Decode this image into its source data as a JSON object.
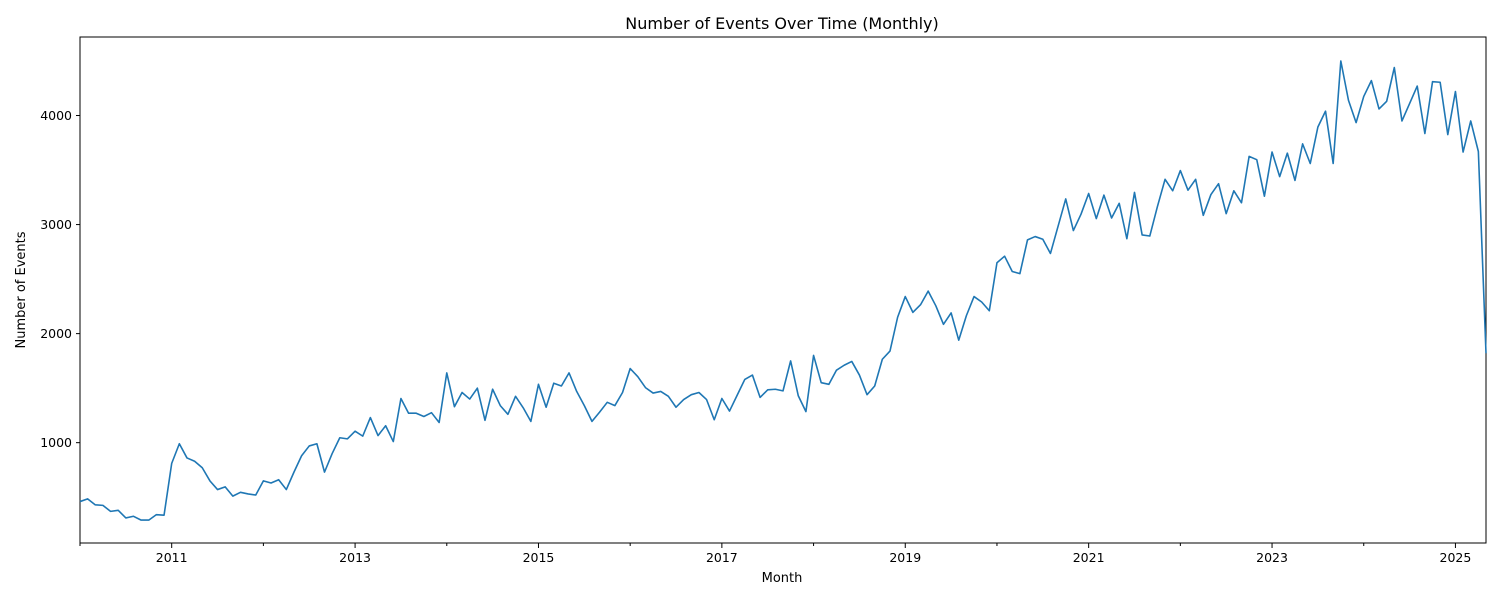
{
  "chart_data": {
    "type": "line",
    "title": "Number of Events Over Time (Monthly)",
    "xlabel": "Month",
    "ylabel": "Number of Events",
    "xlim": [
      "2010-01",
      "2025-06"
    ],
    "ylim": [
      80,
      4720
    ],
    "grid": false,
    "legend": "none",
    "line_color": "#1f77b4",
    "x_ticks": [
      "2011",
      "2013",
      "2015",
      "2017",
      "2019",
      "2021",
      "2023",
      "2025"
    ],
    "y_ticks": [
      "1000",
      "2000",
      "3000",
      "4000"
    ],
    "y_tick_values": [
      1000,
      2000,
      3000,
      4000
    ],
    "start": "2010-01",
    "values": [
      460,
      485,
      430,
      425,
      370,
      380,
      310,
      325,
      290,
      290,
      340,
      335,
      810,
      990,
      860,
      830,
      770,
      650,
      570,
      595,
      510,
      545,
      530,
      520,
      650,
      630,
      660,
      570,
      730,
      880,
      970,
      990,
      730,
      900,
      1045,
      1035,
      1105,
      1060,
      1230,
      1065,
      1155,
      1010,
      1405,
      1270,
      1270,
      1240,
      1275,
      1185,
      1640,
      1330,
      1460,
      1400,
      1500,
      1205,
      1490,
      1340,
      1260,
      1425,
      1320,
      1195,
      1535,
      1325,
      1545,
      1520,
      1640,
      1470,
      1340,
      1195,
      1280,
      1370,
      1340,
      1460,
      1680,
      1605,
      1505,
      1455,
      1470,
      1425,
      1325,
      1395,
      1440,
      1460,
      1395,
      1210,
      1405,
      1290,
      1435,
      1580,
      1620,
      1415,
      1485,
      1490,
      1475,
      1750,
      1430,
      1285,
      1800,
      1550,
      1535,
      1665,
      1710,
      1745,
      1620,
      1440,
      1520,
      1765,
      1840,
      2150,
      2340,
      2195,
      2265,
      2390,
      2255,
      2085,
      2190,
      1940,
      2165,
      2340,
      2290,
      2210,
      2650,
      2710,
      2570,
      2550,
      2860,
      2890,
      2865,
      2735,
      2985,
      3235,
      2945,
      3095,
      3285,
      3055,
      3270,
      3060,
      3195,
      2870,
      3295,
      2905,
      2895,
      3165,
      3415,
      3310,
      3495,
      3315,
      3415,
      3085,
      3275,
      3375,
      3100,
      3310,
      3200,
      3625,
      3595,
      3260,
      3665,
      3440,
      3655,
      3405,
      3740,
      3560,
      3895,
      4040,
      3560,
      4500,
      4140,
      3935,
      4175,
      4320,
      4060,
      4130,
      4440,
      3950,
      4110,
      4270,
      3835,
      4310,
      4305,
      3825,
      4220,
      3665,
      3950,
      3670,
      1820
    ]
  }
}
